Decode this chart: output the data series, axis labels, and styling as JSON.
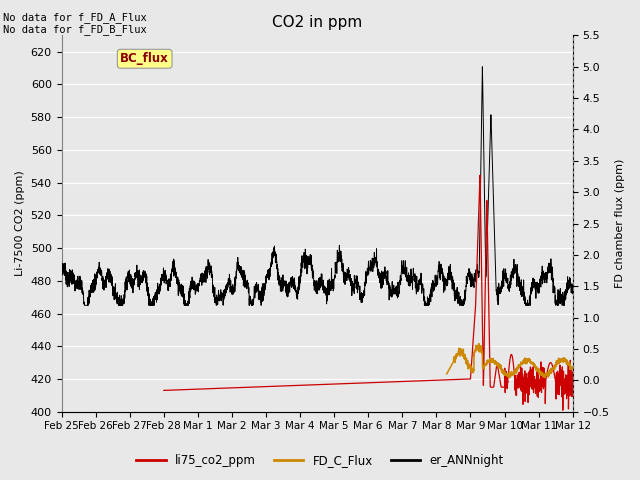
{
  "title": "CO2 in ppm",
  "ylabel_left": "Li-7500 CO2 (ppm)",
  "ylabel_right": "FD chamber flux (ppm)",
  "ylim_left": [
    400,
    630
  ],
  "ylim_right": [
    -0.5,
    5.5
  ],
  "yticks_left": [
    400,
    420,
    440,
    460,
    480,
    500,
    520,
    540,
    560,
    580,
    600,
    620
  ],
  "yticks_right": [
    -0.5,
    0.0,
    0.5,
    1.0,
    1.5,
    2.0,
    2.5,
    3.0,
    3.5,
    4.0,
    4.5,
    5.0,
    5.5
  ],
  "annotation_top": "No data for f_FD_A_Flux\nNo data for f_FD_B_Flux",
  "bc_flux_label": "BC_flux",
  "legend_entries": [
    "li75_co2_ppm",
    "FD_C_Flux",
    "er_ANNnight"
  ],
  "legend_colors": [
    "#cc0000",
    "#cc8800",
    "#000000"
  ],
  "line_red_color": "#cc0000",
  "line_orange_color": "#cc8800",
  "line_black_color": "#000000",
  "bg_color": "#e8e8e8",
  "xtick_labels": [
    "Feb 25",
    "Feb 26",
    "Feb 27",
    "Feb 28",
    "Mar 1",
    "Mar 2",
    "Mar 3",
    "Mar 4",
    "Mar 5",
    "Mar 6",
    "Mar 7",
    "Mar 8",
    "Mar 9",
    "Mar 10",
    "Mar 11",
    "Mar 12"
  ],
  "xtick_positions": [
    0,
    1,
    2,
    3,
    4,
    5,
    6,
    7,
    8,
    9,
    10,
    11,
    12,
    13,
    14,
    15
  ],
  "xlim": [
    0,
    15
  ],
  "n_days": 15,
  "figsize": [
    6.4,
    4.8
  ],
  "dpi": 100
}
